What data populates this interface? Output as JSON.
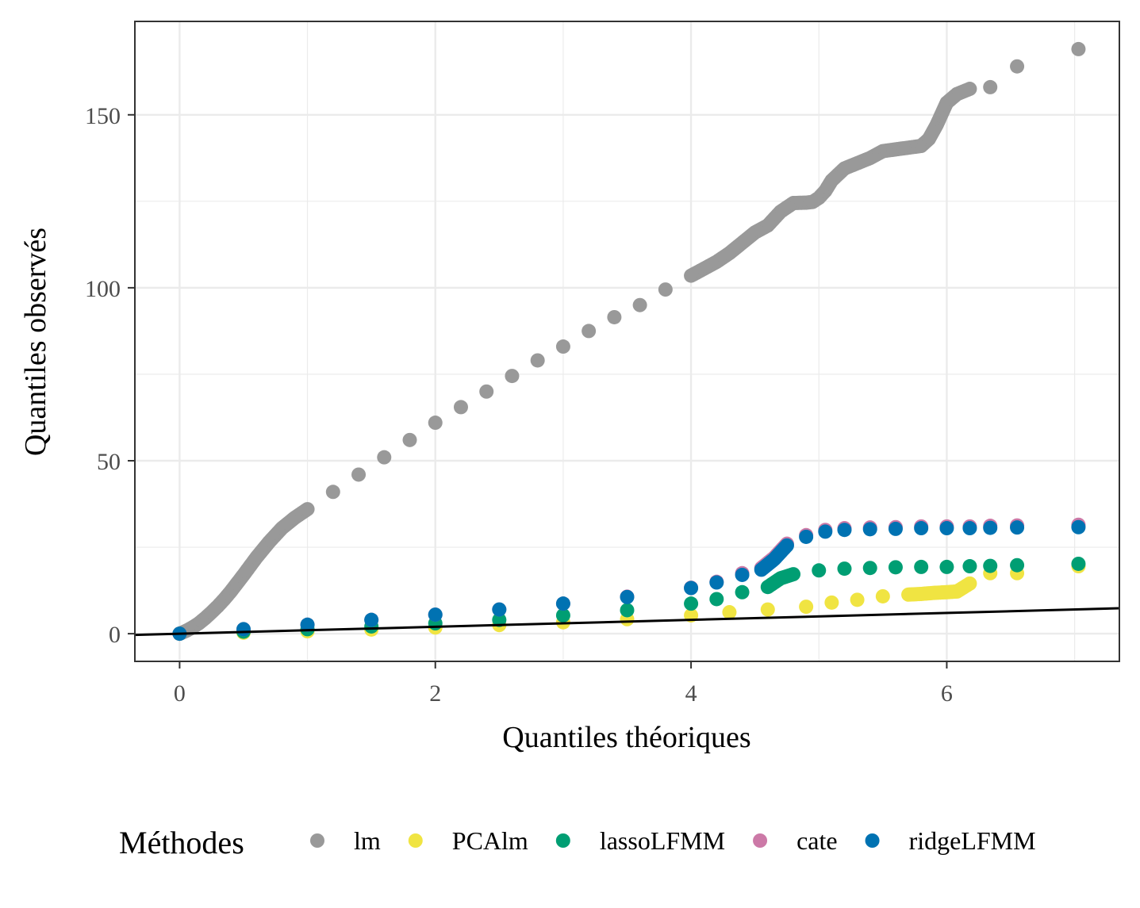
{
  "chart_data": {
    "type": "scatter",
    "title": "",
    "xlabel": "Quantiles théoriques",
    "ylabel": "Quantiles observés",
    "xlim": [
      -0.35,
      7.35
    ],
    "ylim": [
      -8,
      177
    ],
    "xticks": [
      0,
      2,
      4,
      6
    ],
    "yticks": [
      0,
      50,
      100,
      150
    ],
    "grid": true,
    "legend": {
      "title": "Méthodes",
      "position": "bottom"
    },
    "reference_line": {
      "intercept": 0,
      "slope": 1,
      "color": "#000000"
    },
    "series": [
      {
        "name": "lm",
        "color": "#999999",
        "x": [
          0,
          0.05,
          0.1,
          0.15,
          0.2,
          0.25,
          0.3,
          0.35,
          0.4,
          0.5,
          0.6,
          0.7,
          0.8,
          0.9,
          1.0,
          1.2,
          1.4,
          1.6,
          1.8,
          2.0,
          2.2,
          2.4,
          2.6,
          2.8,
          3.0,
          3.2,
          3.4,
          3.6,
          3.8,
          4.0,
          4.1,
          4.2,
          4.3,
          4.4,
          4.5,
          4.6,
          4.7,
          4.8,
          4.9,
          4.95,
          5.0,
          5.05,
          5.1,
          5.2,
          5.3,
          5.4,
          5.5,
          5.6,
          5.7,
          5.8,
          5.86,
          5.92,
          6.0,
          6.08,
          6.18,
          6.34,
          6.55,
          7.03
        ],
        "y": [
          0,
          0.8,
          1.8,
          3.0,
          4.5,
          6.2,
          8.0,
          10.0,
          12.2,
          17.0,
          22.0,
          26.5,
          30.5,
          33.5,
          36.0,
          41.0,
          46.0,
          51.0,
          56.0,
          61.0,
          65.5,
          70.0,
          74.5,
          79.0,
          83.0,
          87.5,
          91.5,
          95.0,
          99.5,
          103.5,
          105.5,
          107.5,
          110.0,
          113.0,
          116.0,
          118.0,
          122.0,
          124.5,
          124.6,
          124.8,
          126.0,
          128.0,
          131.0,
          134.5,
          136.0,
          137.5,
          139.5,
          140.0,
          140.5,
          141.0,
          143.0,
          147.0,
          153.5,
          156.0,
          157.5,
          158.0,
          164.0,
          169.0
        ]
      },
      {
        "name": "PCAlm",
        "color": "#F0E442",
        "x": [
          0,
          0.5,
          1.0,
          1.5,
          2.0,
          2.5,
          3.0,
          3.5,
          4.0,
          4.3,
          4.6,
          4.9,
          5.1,
          5.3,
          5.5,
          5.7,
          5.8,
          5.9,
          6.0,
          6.08,
          6.18,
          6.34,
          6.55,
          7.03
        ],
        "y": [
          0,
          0.3,
          0.7,
          1.2,
          1.8,
          2.5,
          3.3,
          4.2,
          5.3,
          6.2,
          7.0,
          7.8,
          9.0,
          9.8,
          10.8,
          11.3,
          11.5,
          11.8,
          12.0,
          12.2,
          14.5,
          17.5,
          17.5,
          19.5
        ]
      },
      {
        "name": "lassoLFMM",
        "color": "#009E73",
        "x": [
          0,
          0.5,
          1.0,
          1.5,
          2.0,
          2.5,
          3.0,
          3.5,
          4.0,
          4.2,
          4.4,
          4.6,
          4.7,
          4.8,
          5.0,
          5.2,
          5.4,
          5.6,
          5.8,
          6.0,
          6.18,
          6.34,
          6.55,
          7.03
        ],
        "y": [
          0,
          0.6,
          1.3,
          2.1,
          3.0,
          4.0,
          5.3,
          6.8,
          8.7,
          10.0,
          12.0,
          13.5,
          16.0,
          17.2,
          18.3,
          18.8,
          19.0,
          19.2,
          19.3,
          19.3,
          19.5,
          19.6,
          19.8,
          20.2
        ]
      },
      {
        "name": "cate",
        "color": "#CC79A7",
        "x": [
          0,
          0.5,
          1.0,
          1.5,
          2.0,
          2.5,
          3.0,
          3.5,
          4.0,
          4.2,
          4.4,
          4.55,
          4.65,
          4.75,
          4.9,
          5.05,
          5.2,
          5.4,
          5.6,
          5.8,
          6.0,
          6.18,
          6.34,
          6.55,
          7.03
        ],
        "y": [
          0,
          1.3,
          2.6,
          4.0,
          5.5,
          7.0,
          8.7,
          10.7,
          13.3,
          15.0,
          17.5,
          19.0,
          22.0,
          26.0,
          28.5,
          30.0,
          30.5,
          30.7,
          30.8,
          31.0,
          31.0,
          31.0,
          31.2,
          31.3,
          31.5
        ]
      },
      {
        "name": "ridgeLFMM",
        "color": "#0072B2",
        "x": [
          0,
          0.5,
          1.0,
          1.5,
          2.0,
          2.5,
          3.0,
          3.5,
          4.0,
          4.2,
          4.4,
          4.55,
          4.65,
          4.75,
          4.9,
          5.05,
          5.2,
          5.4,
          5.6,
          5.8,
          6.0,
          6.18,
          6.34,
          6.55,
          7.03
        ],
        "y": [
          0,
          1.3,
          2.6,
          4.0,
          5.5,
          7.0,
          8.7,
          10.6,
          13.2,
          14.8,
          17.0,
          18.5,
          21.5,
          25.5,
          28.0,
          29.5,
          30.0,
          30.2,
          30.3,
          30.5,
          30.5,
          30.5,
          30.6,
          30.7,
          30.8
        ]
      }
    ]
  }
}
